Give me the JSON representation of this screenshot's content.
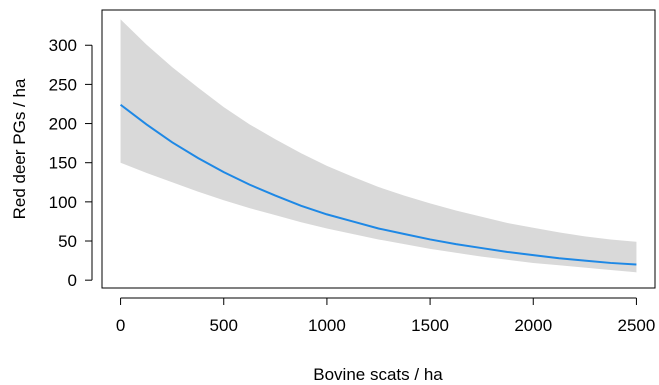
{
  "chart_data": {
    "type": "line",
    "title": "",
    "xlabel": "Bovine scats / ha",
    "ylabel": "Red deer PGs / ha",
    "xlim": [
      -90,
      2590
    ],
    "ylim": [
      -10,
      345
    ],
    "x_ticks": [
      0,
      500,
      1000,
      1500,
      2000,
      2500
    ],
    "y_ticks": [
      0,
      50,
      100,
      150,
      200,
      250,
      300
    ],
    "x_tick_labels": [
      "0",
      "500",
      "1000",
      "1500",
      "2000",
      "2500"
    ],
    "y_tick_labels": [
      "0",
      "50",
      "100",
      "150",
      "200",
      "250",
      "300"
    ],
    "grid": false,
    "x": [
      0,
      125,
      250,
      375,
      500,
      625,
      750,
      875,
      1000,
      1125,
      1250,
      1375,
      1500,
      1625,
      1750,
      1875,
      2000,
      2125,
      2250,
      2375,
      2500
    ],
    "series": [
      {
        "values": [
          224,
          199,
          176,
          156,
          138,
          122,
          108,
          95,
          84,
          75,
          66,
          59,
          52,
          46,
          41,
          36,
          32,
          28,
          25,
          22,
          20
        ],
        "ci_upper": [
          333,
          301,
          272,
          246,
          221,
          199,
          180,
          162,
          146,
          132,
          119,
          108,
          98,
          89,
          81,
          73,
          67,
          61,
          56,
          52,
          49
        ],
        "ci_lower": [
          150,
          137,
          125,
          113,
          102,
          92,
          83,
          74,
          66,
          59,
          52,
          46,
          40,
          35,
          30,
          26,
          22,
          19,
          16,
          13,
          10
        ]
      }
    ],
    "colors": {
      "line": "#1e88e5",
      "band": "#d9d9d9",
      "axis": "#000000"
    }
  }
}
